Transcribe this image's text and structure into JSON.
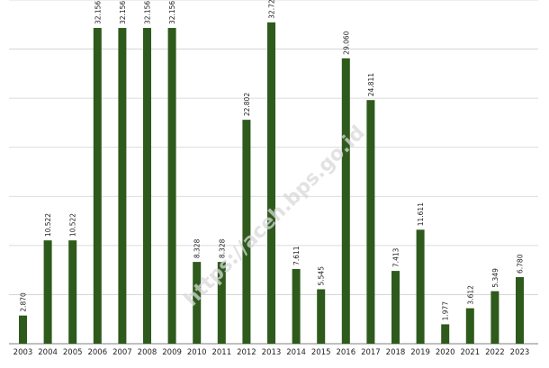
{
  "watermark": "https://aceh.bps.go.id",
  "colors": {
    "bar": "#2e5a1c",
    "grid": "#d0d0d0",
    "axis": "#9a9a9a",
    "text": "#222222"
  },
  "chart_data": {
    "type": "bar",
    "categories": [
      "2003",
      "2004",
      "2005",
      "2006",
      "2007",
      "2008",
      "2009",
      "2010",
      "2011",
      "2012",
      "2013",
      "2014",
      "2015",
      "2016",
      "2017",
      "2018",
      "2019",
      "2020",
      "2021",
      "2022",
      "2023"
    ],
    "values": [
      2.87,
      10.522,
      10.522,
      32.156,
      32.156,
      32.156,
      32.156,
      8.328,
      8.328,
      22.802,
      32.723,
      7.611,
      5.545,
      29.06,
      24.811,
      7.413,
      11.611,
      1.977,
      3.612,
      5.349,
      6.78
    ],
    "value_labels": [
      "2.870",
      "10.522",
      "10.522",
      "32.156",
      "32.156",
      "32.156",
      "32.156",
      "8.328",
      "8.328",
      "22.802",
      "32.723",
      "7.611",
      "5.545",
      "29.060",
      "24.811",
      "7.413",
      "11.611",
      "1.977",
      "3.612",
      "5.349",
      "6.780"
    ],
    "title": "",
    "xlabel": "",
    "ylabel": "",
    "ylim": [
      0,
      35
    ],
    "grid": true,
    "gridlines": [
      0,
      5,
      10,
      15,
      20,
      25,
      30,
      35
    ],
    "legend": "none"
  }
}
